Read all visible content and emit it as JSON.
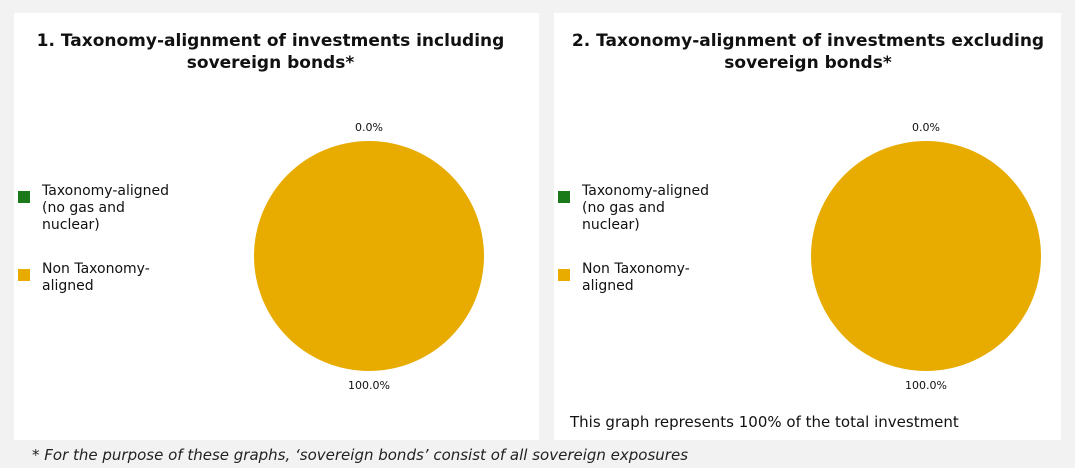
{
  "chart_data": [
    {
      "type": "pie",
      "title": "1. Taxonomy-alignment of investments including sovereign bonds*",
      "categories": [
        "Taxonomy-aligned (no gas and nuclear)",
        "Non Taxonomy-aligned"
      ],
      "values": [
        0.0,
        100.0
      ],
      "data_labels": [
        "0.0%",
        "100.0%"
      ],
      "colors": [
        "#1a7a1a",
        "#e8ac00"
      ],
      "legend_position": "left"
    },
    {
      "type": "pie",
      "title": "2. Taxonomy-alignment of investments excluding sovereign bonds*",
      "categories": [
        "Taxonomy-aligned (no gas and nuclear)",
        "Non Taxonomy-aligned"
      ],
      "values": [
        0.0,
        100.0
      ],
      "data_labels": [
        "0.0%",
        "100.0%"
      ],
      "colors": [
        "#1a7a1a",
        "#e8ac00"
      ],
      "legend_position": "left"
    }
  ],
  "panel_2_note": "This graph represents 100% of the total investment",
  "footnote": "* For the purpose of these graphs, ‘sovereign bonds’ consist of all sovereign exposures"
}
